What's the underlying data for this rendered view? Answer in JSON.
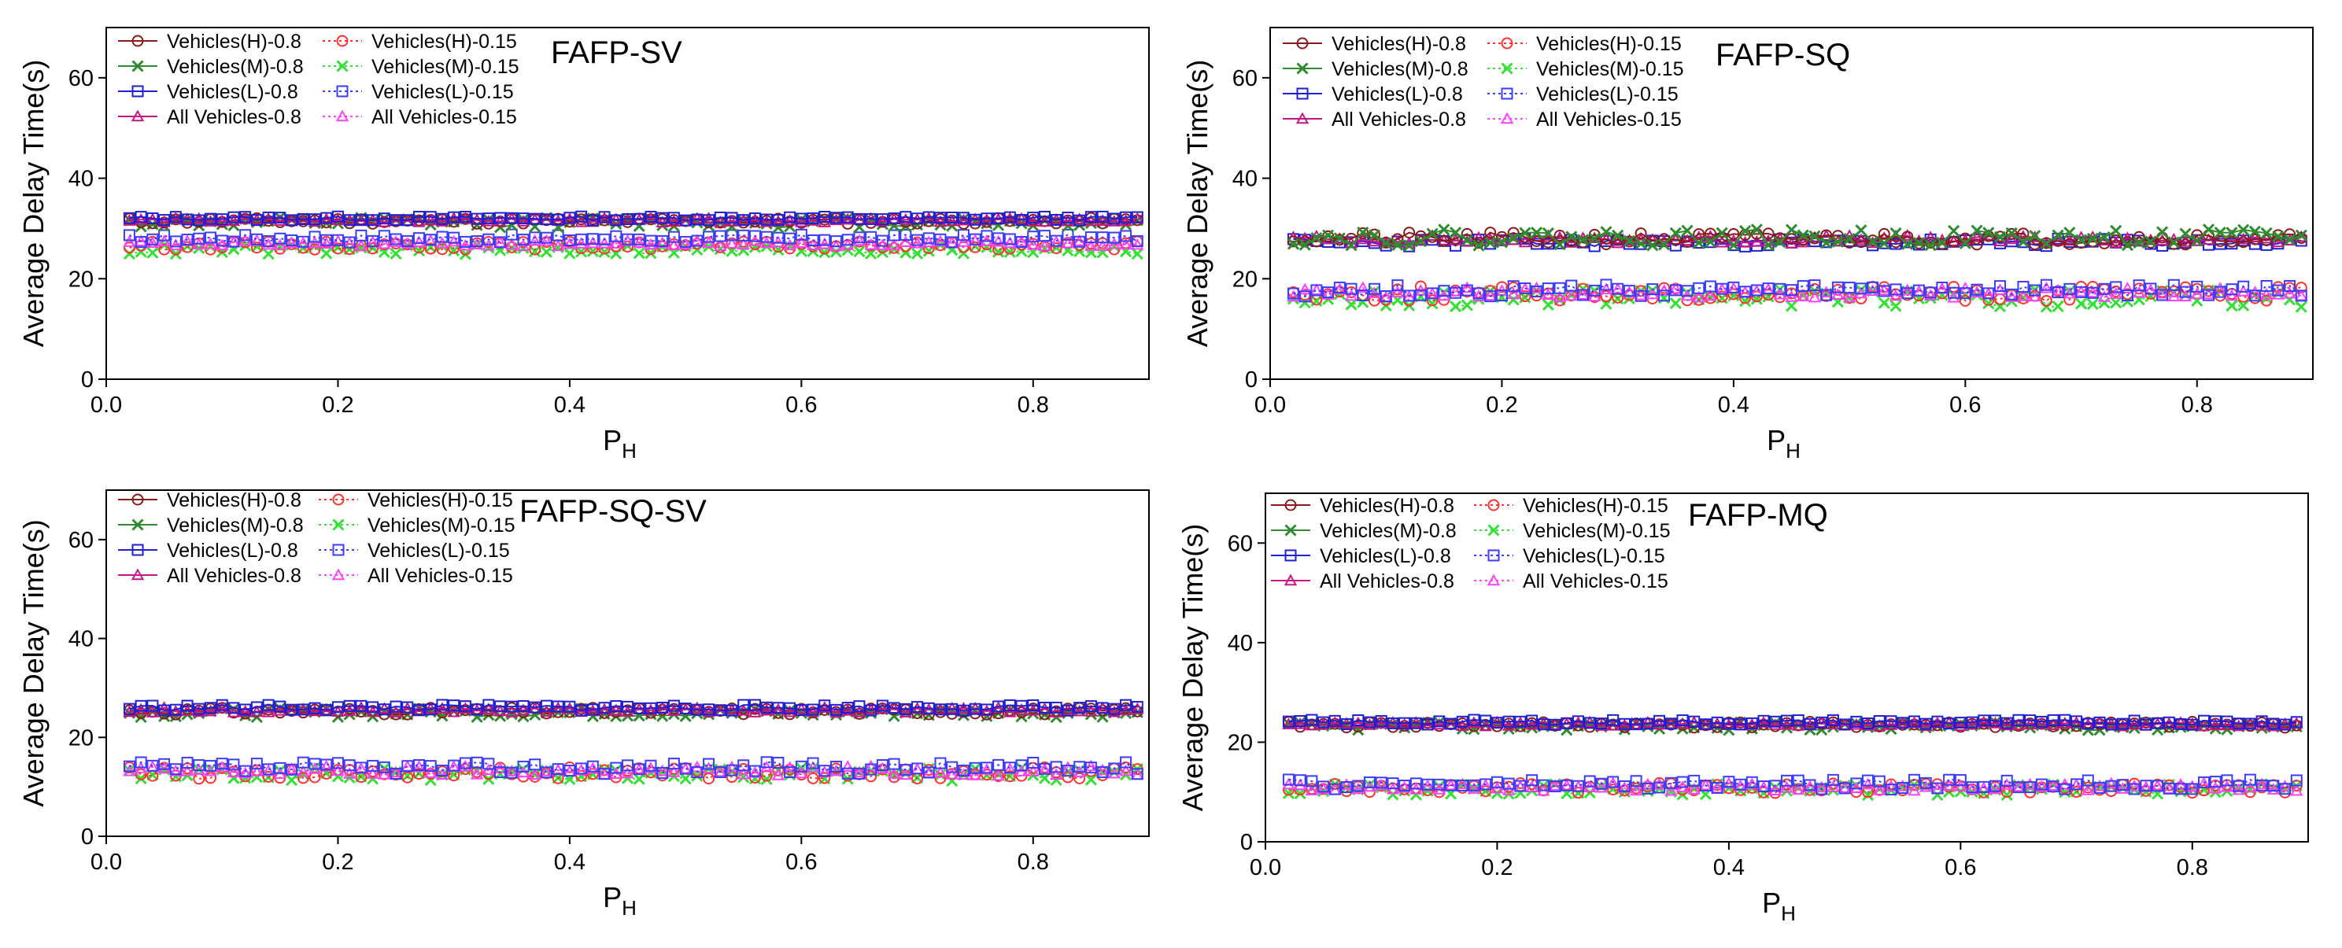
{
  "figure": {
    "panels_count": 4,
    "legend_entries": [
      "Vehicles(H)-0.8",
      "Vehicles(H)-0.15",
      "Vehicles(M)-0.8",
      "Vehicles(M)-0.15",
      "Vehicles(L)-0.8",
      "Vehicles(L)-0.15",
      "All Vehicles-0.8",
      "All Vehicles-0.15"
    ]
  },
  "series_styles": [
    {
      "name": "Vehicles(H)-0.8",
      "color": "#8b1a1a",
      "marker": "circle",
      "dash": "solid"
    },
    {
      "name": "Vehicles(M)-0.8",
      "color": "#2e8b2e",
      "marker": "x",
      "dash": "solid"
    },
    {
      "name": "Vehicles(L)-0.8",
      "color": "#1f1fd6",
      "marker": "square",
      "dash": "solid"
    },
    {
      "name": "All Vehicles-0.8",
      "color": "#c71585",
      "marker": "triangle",
      "dash": "solid"
    },
    {
      "name": "Vehicles(H)-0.15",
      "color": "#ff3030",
      "marker": "circle",
      "dash": "dotted"
    },
    {
      "name": "Vehicles(M)-0.15",
      "color": "#33e033",
      "marker": "x",
      "dash": "dotted"
    },
    {
      "name": "Vehicles(L)-0.15",
      "color": "#3c3cff",
      "marker": "square",
      "dash": "dotted"
    },
    {
      "name": "All Vehicles-0.15",
      "color": "#ff40ff",
      "marker": "triangle",
      "dash": "dotted"
    }
  ],
  "chart_data": [
    {
      "type": "line",
      "title": "FAFP-SV",
      "xlabel": "P",
      "xlabel_sub": "H",
      "ylabel": "Average Delay Time(s)",
      "xlim": [
        0.0,
        0.9
      ],
      "ylim": [
        0,
        70
      ],
      "xticks": [
        "0.0",
        "0.2",
        "0.4",
        "0.6",
        "0.8"
      ],
      "yticks": [
        "0",
        "20",
        "40",
        "60"
      ],
      "x": [
        0.02,
        0.03,
        0.04,
        0.05,
        0.06,
        0.07,
        0.08,
        0.09,
        0.1,
        0.11,
        0.12,
        0.13,
        0.14,
        0.15,
        0.16,
        0.17,
        0.18,
        0.19,
        0.2,
        0.21,
        0.22,
        0.23,
        0.24,
        0.25,
        0.26,
        0.27,
        0.28,
        0.29,
        0.3,
        0.31,
        0.32,
        0.33,
        0.34,
        0.35,
        0.36,
        0.37,
        0.38,
        0.39,
        0.4,
        0.41,
        0.42,
        0.43,
        0.44,
        0.45,
        0.46,
        0.47,
        0.48,
        0.49,
        0.5,
        0.51,
        0.52,
        0.53,
        0.54,
        0.55,
        0.56,
        0.57,
        0.58,
        0.59,
        0.6,
        0.61,
        0.62,
        0.63,
        0.64,
        0.65,
        0.66,
        0.67,
        0.68,
        0.69,
        0.7,
        0.71,
        0.72,
        0.73,
        0.74,
        0.75,
        0.76,
        0.77,
        0.78,
        0.79,
        0.8,
        0.81,
        0.82,
        0.83,
        0.84,
        0.85,
        0.86,
        0.87,
        0.88,
        0.89
      ],
      "series": [
        {
          "name": "Vehicles(H)-0.8",
          "base": 31.5,
          "spread": 0.6,
          "seed": 11
        },
        {
          "name": "Vehicles(M)-0.8",
          "base": 31.2,
          "spread": 1.0,
          "seed": 12
        },
        {
          "name": "Vehicles(L)-0.8",
          "base": 32.0,
          "spread": 0.4,
          "seed": 13
        },
        {
          "name": "All Vehicles-0.8",
          "base": 31.6,
          "spread": 0.4,
          "seed": 14
        },
        {
          "name": "Vehicles(H)-0.15",
          "base": 26.6,
          "spread": 0.8,
          "seed": 15
        },
        {
          "name": "Vehicles(M)-0.15",
          "base": 25.8,
          "spread": 1.0,
          "seed": 16
        },
        {
          "name": "Vehicles(L)-0.15",
          "base": 28.0,
          "spread": 0.8,
          "seed": 17
        },
        {
          "name": "All Vehicles-0.15",
          "base": 27.0,
          "spread": 0.6,
          "seed": 18
        }
      ]
    },
    {
      "type": "line",
      "title": "FAFP-SQ",
      "xlabel": "P",
      "xlabel_sub": "H",
      "ylabel": "Average Delay Time(s)",
      "xlim": [
        0.0,
        0.9
      ],
      "ylim": [
        0,
        70
      ],
      "xticks": [
        "0.0",
        "0.2",
        "0.4",
        "0.6",
        "0.8"
      ],
      "yticks": [
        "0",
        "20",
        "40",
        "60"
      ],
      "x": [
        0.02,
        0.03,
        0.04,
        0.05,
        0.06,
        0.07,
        0.08,
        0.09,
        0.1,
        0.11,
        0.12,
        0.13,
        0.14,
        0.15,
        0.16,
        0.17,
        0.18,
        0.19,
        0.2,
        0.21,
        0.22,
        0.23,
        0.24,
        0.25,
        0.26,
        0.27,
        0.28,
        0.29,
        0.3,
        0.31,
        0.32,
        0.33,
        0.34,
        0.35,
        0.36,
        0.37,
        0.38,
        0.39,
        0.4,
        0.41,
        0.42,
        0.43,
        0.44,
        0.45,
        0.46,
        0.47,
        0.48,
        0.49,
        0.5,
        0.51,
        0.52,
        0.53,
        0.54,
        0.55,
        0.56,
        0.57,
        0.58,
        0.59,
        0.6,
        0.61,
        0.62,
        0.63,
        0.64,
        0.65,
        0.66,
        0.67,
        0.68,
        0.69,
        0.7,
        0.71,
        0.72,
        0.73,
        0.74,
        0.75,
        0.76,
        0.77,
        0.78,
        0.79,
        0.8,
        0.81,
        0.82,
        0.83,
        0.84,
        0.85,
        0.86,
        0.87,
        0.88,
        0.89
      ],
      "series": [
        {
          "name": "Vehicles(H)-0.8",
          "base": 28.0,
          "spread": 1.2,
          "seed": 21
        },
        {
          "name": "Vehicles(M)-0.8",
          "base": 28.2,
          "spread": 1.6,
          "seed": 22
        },
        {
          "name": "Vehicles(L)-0.8",
          "base": 27.2,
          "spread": 0.8,
          "seed": 23
        },
        {
          "name": "All Vehicles-0.8",
          "base": 27.8,
          "spread": 0.8,
          "seed": 24
        },
        {
          "name": "Vehicles(H)-0.15",
          "base": 17.0,
          "spread": 1.5,
          "seed": 25
        },
        {
          "name": "Vehicles(M)-0.15",
          "base": 16.2,
          "spread": 1.8,
          "seed": 26
        },
        {
          "name": "Vehicles(L)-0.15",
          "base": 17.6,
          "spread": 1.2,
          "seed": 27
        },
        {
          "name": "All Vehicles-0.15",
          "base": 17.2,
          "spread": 1.0,
          "seed": 28
        }
      ]
    },
    {
      "type": "line",
      "title": "FAFP-SQ-SV",
      "xlabel": "P",
      "xlabel_sub": "H",
      "ylabel": "Average Delay Time(s)",
      "xlim": [
        0.0,
        0.9
      ],
      "ylim": [
        0,
        70
      ],
      "xticks": [
        "0.0",
        "0.2",
        "0.4",
        "0.6",
        "0.8"
      ],
      "yticks": [
        "0",
        "20",
        "40",
        "60"
      ],
      "x": [
        0.02,
        0.03,
        0.04,
        0.05,
        0.06,
        0.07,
        0.08,
        0.09,
        0.1,
        0.11,
        0.12,
        0.13,
        0.14,
        0.15,
        0.16,
        0.17,
        0.18,
        0.19,
        0.2,
        0.21,
        0.22,
        0.23,
        0.24,
        0.25,
        0.26,
        0.27,
        0.28,
        0.29,
        0.3,
        0.31,
        0.32,
        0.33,
        0.34,
        0.35,
        0.36,
        0.37,
        0.38,
        0.39,
        0.4,
        0.41,
        0.42,
        0.43,
        0.44,
        0.45,
        0.46,
        0.47,
        0.48,
        0.49,
        0.5,
        0.51,
        0.52,
        0.53,
        0.54,
        0.55,
        0.56,
        0.57,
        0.58,
        0.59,
        0.6,
        0.61,
        0.62,
        0.63,
        0.64,
        0.65,
        0.66,
        0.67,
        0.68,
        0.69,
        0.7,
        0.71,
        0.72,
        0.73,
        0.74,
        0.75,
        0.76,
        0.77,
        0.78,
        0.79,
        0.8,
        0.81,
        0.82,
        0.83,
        0.84,
        0.85,
        0.86,
        0.87,
        0.88,
        0.89
      ],
      "series": [
        {
          "name": "Vehicles(H)-0.8",
          "base": 25.3,
          "spread": 0.7,
          "seed": 31
        },
        {
          "name": "Vehicles(M)-0.8",
          "base": 25.0,
          "spread": 0.9,
          "seed": 32
        },
        {
          "name": "Vehicles(L)-0.8",
          "base": 26.0,
          "spread": 0.6,
          "seed": 33
        },
        {
          "name": "All Vehicles-0.8",
          "base": 25.5,
          "spread": 0.5,
          "seed": 34
        },
        {
          "name": "Vehicles(H)-0.15",
          "base": 12.8,
          "spread": 1.2,
          "seed": 35
        },
        {
          "name": "Vehicles(M)-0.15",
          "base": 12.5,
          "spread": 1.3,
          "seed": 36
        },
        {
          "name": "Vehicles(L)-0.15",
          "base": 13.8,
          "spread": 1.2,
          "seed": 37
        },
        {
          "name": "All Vehicles-0.15",
          "base": 13.2,
          "spread": 1.0,
          "seed": 38
        }
      ]
    },
    {
      "type": "line",
      "title": "FAFP-MQ",
      "xlabel": "P",
      "xlabel_sub": "H",
      "ylabel": "Average Delay Time(s)",
      "xlim": [
        0.0,
        0.9
      ],
      "ylim": [
        0,
        70
      ],
      "xticks": [
        "0.0",
        "0.2",
        "0.4",
        "0.6",
        "0.8"
      ],
      "yticks": [
        "0",
        "20",
        "40",
        "60"
      ],
      "x": [
        0.02,
        0.03,
        0.04,
        0.05,
        0.06,
        0.07,
        0.08,
        0.09,
        0.1,
        0.11,
        0.12,
        0.13,
        0.14,
        0.15,
        0.16,
        0.17,
        0.18,
        0.19,
        0.2,
        0.21,
        0.22,
        0.23,
        0.24,
        0.25,
        0.26,
        0.27,
        0.28,
        0.29,
        0.3,
        0.31,
        0.32,
        0.33,
        0.34,
        0.35,
        0.36,
        0.37,
        0.38,
        0.39,
        0.4,
        0.41,
        0.42,
        0.43,
        0.44,
        0.45,
        0.46,
        0.47,
        0.48,
        0.49,
        0.5,
        0.51,
        0.52,
        0.53,
        0.54,
        0.55,
        0.56,
        0.57,
        0.58,
        0.59,
        0.6,
        0.61,
        0.62,
        0.63,
        0.64,
        0.65,
        0.66,
        0.67,
        0.68,
        0.69,
        0.7,
        0.71,
        0.72,
        0.73,
        0.74,
        0.75,
        0.76,
        0.77,
        0.78,
        0.79,
        0.8,
        0.81,
        0.82,
        0.83,
        0.84,
        0.85,
        0.86,
        0.87,
        0.88,
        0.89
      ],
      "series": [
        {
          "name": "Vehicles(H)-0.8",
          "base": 23.5,
          "spread": 0.6,
          "seed": 41
        },
        {
          "name": "Vehicles(M)-0.8",
          "base": 23.2,
          "spread": 0.8,
          "seed": 42
        },
        {
          "name": "Vehicles(L)-0.8",
          "base": 24.0,
          "spread": 0.5,
          "seed": 43
        },
        {
          "name": "All Vehicles-0.8",
          "base": 23.6,
          "spread": 0.4,
          "seed": 44
        },
        {
          "name": "Vehicles(H)-0.15",
          "base": 10.8,
          "spread": 1.0,
          "seed": 45
        },
        {
          "name": "Vehicles(M)-0.15",
          "base": 10.5,
          "spread": 1.1,
          "seed": 46
        },
        {
          "name": "Vehicles(L)-0.15",
          "base": 11.5,
          "spread": 1.0,
          "seed": 47
        },
        {
          "name": "All Vehicles-0.15",
          "base": 11.0,
          "spread": 0.8,
          "seed": 48
        }
      ]
    }
  ]
}
